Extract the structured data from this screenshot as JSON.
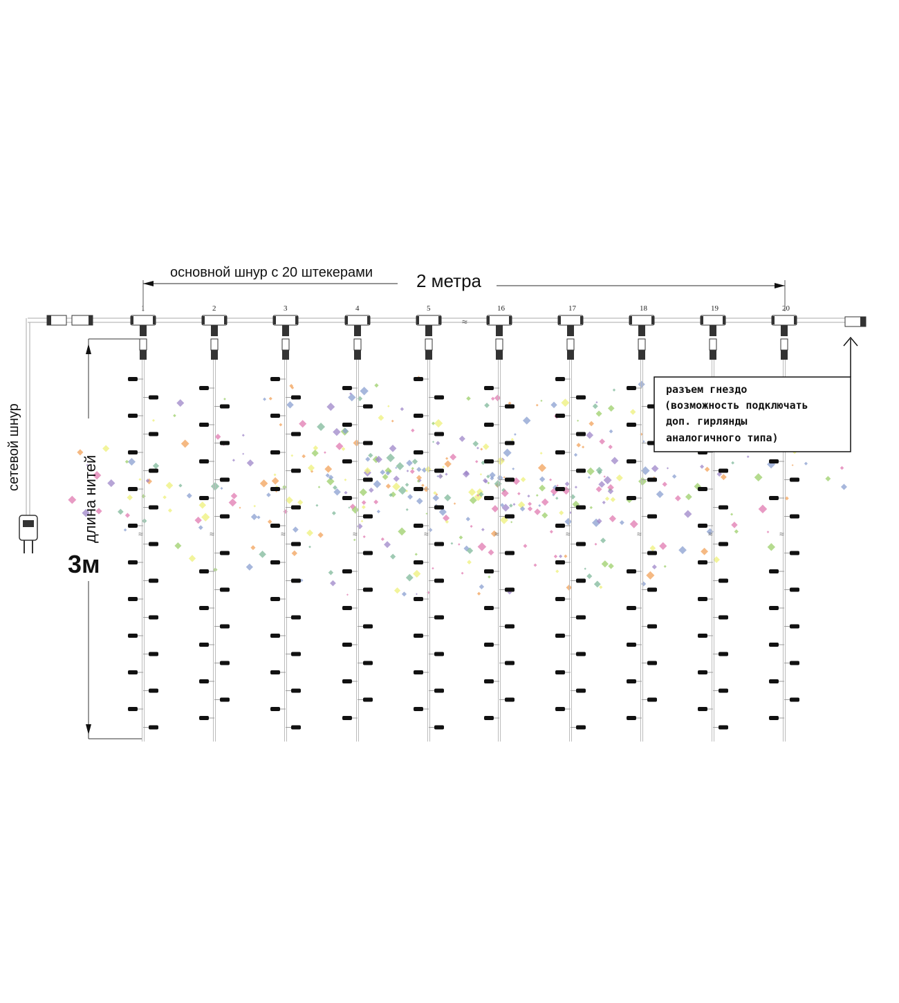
{
  "labels": {
    "main_cord": "основной шнур с 20 штекерами",
    "width": "2 метра",
    "power_cord": "сетевой шнур",
    "strand_length": "длина нитей",
    "length_value": "3м"
  },
  "socket_note": {
    "lines": [
      "разъем гнездо",
      "(возможность подключать",
      "доп. гирлянды",
      "аналогичного типа)"
    ]
  },
  "strand_numbers": [
    "1",
    "2",
    "3",
    "4",
    "5",
    "16",
    "17",
    "18",
    "19",
    "20"
  ],
  "colors": {
    "line": "#222222",
    "wire": "#bbbbbb",
    "watermark": [
      "#e07ab0",
      "#8a9fd0",
      "#9e86c8",
      "#7fb89a",
      "#9ccf6a",
      "#f2a15a",
      "#eef07a"
    ]
  }
}
